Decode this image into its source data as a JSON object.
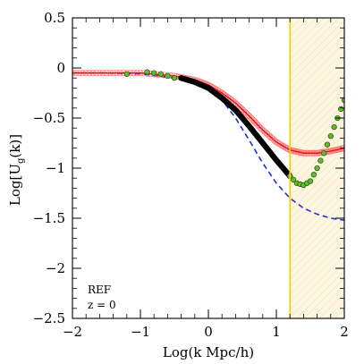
{
  "chart_data": {
    "type": "line",
    "xlabel": "Log(k Mpc/h)",
    "ylabel_main": "Log[U",
    "ylabel_sub": "g",
    "ylabel_end": "(k)]",
    "xlim": [
      -2,
      2
    ],
    "ylim": [
      -2.5,
      0.5
    ],
    "x_ticks": [
      -2,
      -1,
      0,
      1,
      2
    ],
    "x_tick_labels": [
      "−2",
      "−1",
      "0",
      "1",
      "2"
    ],
    "y_ticks": [
      -2.5,
      -2,
      -1.5,
      -1,
      -0.5,
      0,
      0.5
    ],
    "y_tick_labels": [
      "−2.5",
      "−2",
      "−1.5",
      "−1",
      "−0.5",
      "0",
      "0.5"
    ],
    "annotations": [
      "REF",
      "z = 0"
    ],
    "vertical_line": {
      "x": 1.2,
      "color": "#ffcc00"
    },
    "shaded_region": {
      "x": [
        1.2,
        2.0
      ],
      "color": "#fdf6e3"
    },
    "series": [
      {
        "style": "dashed",
        "color": "#1f2fd6",
        "x": [
          -2.0,
          -1.5,
          -1.0,
          -0.5,
          -0.2,
          0.0,
          0.2,
          0.4,
          0.6,
          0.8,
          1.0,
          1.2,
          1.4,
          1.6,
          1.8,
          2.0
        ],
        "y": [
          -0.05,
          -0.05,
          -0.06,
          -0.1,
          -0.15,
          -0.2,
          -0.32,
          -0.5,
          -0.72,
          -0.95,
          -1.15,
          -1.3,
          -1.4,
          -1.46,
          -1.5,
          -1.52
        ]
      },
      {
        "style": "solid",
        "color": "#e8141b",
        "x": [
          -2.0,
          -1.5,
          -1.0,
          -0.5,
          -0.2,
          0.0,
          0.2,
          0.4,
          0.6,
          0.8,
          1.0,
          1.2,
          1.4,
          1.6,
          1.8,
          2.0
        ],
        "y": [
          -0.05,
          -0.05,
          -0.05,
          -0.08,
          -0.12,
          -0.17,
          -0.25,
          -0.35,
          -0.48,
          -0.62,
          -0.74,
          -0.82,
          -0.85,
          -0.85,
          -0.83,
          -0.8
        ]
      },
      {
        "style": "thick-points",
        "color": "#000000",
        "x": [
          -0.4,
          -0.2,
          0.0,
          0.2,
          0.4,
          0.6,
          0.8,
          1.0,
          1.2
        ],
        "y": [
          -0.1,
          -0.14,
          -0.2,
          -0.3,
          -0.42,
          -0.58,
          -0.75,
          -0.92,
          -1.08
        ]
      },
      {
        "style": "circles",
        "color": "#5fbf2a",
        "x": [
          -1.2,
          -0.9,
          -0.8,
          -0.7,
          -0.6,
          -0.5,
          1.2,
          1.3,
          1.4,
          1.5,
          1.6,
          1.7,
          1.8,
          1.9,
          2.0
        ],
        "y": [
          -0.06,
          -0.04,
          -0.05,
          -0.06,
          -0.08,
          -0.1,
          -1.08,
          -1.15,
          -1.17,
          -1.13,
          -1.0,
          -0.85,
          -0.68,
          -0.5,
          -0.32
        ]
      }
    ]
  }
}
